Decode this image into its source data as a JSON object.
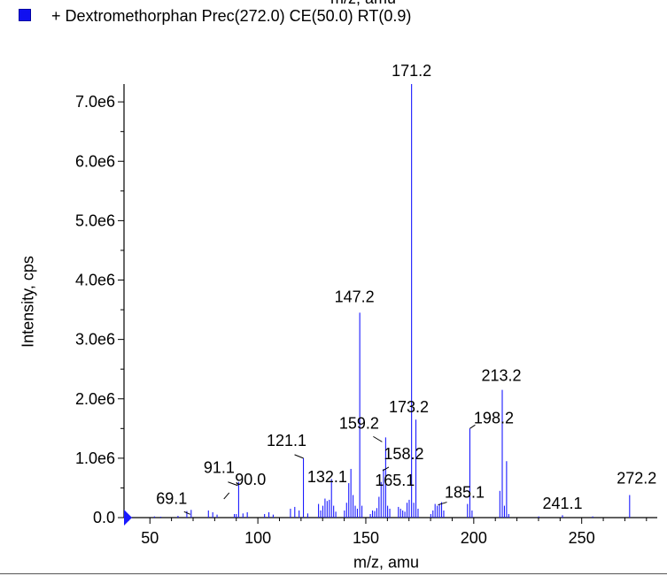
{
  "top_clipped_text": "m/z, amu",
  "chart_data": {
    "type": "bar",
    "title": "+ Dextromethorphan Prec(272.0) CE(50.0) RT(0.9)",
    "legend": {
      "placement": "top-left",
      "swatch_color": "#1010f0",
      "label": "+ Dextromethorphan Prec(272.0) CE(50.0) RT(0.9)"
    },
    "xlabel": "m/z, amu",
    "ylabel": "Intensity, cps",
    "xlim": [
      38,
      285
    ],
    "ylim": [
      0,
      7300000.0
    ],
    "x_ticks": [
      50,
      100,
      150,
      200,
      250
    ],
    "x_tick_labels": [
      "50",
      "100",
      "150",
      "200",
      "250"
    ],
    "y_ticks": [
      0,
      1000000,
      2000000,
      3000000,
      4000000,
      5000000,
      6000000,
      7000000
    ],
    "y_tick_labels": [
      "0.0",
      "1.0e6",
      "2.0e6",
      "3.0e6",
      "4.0e6",
      "5.0e6",
      "6.0e6",
      "7.0e6"
    ],
    "grid": false,
    "color": "#1a1aff",
    "peaks": [
      {
        "x": 52.1,
        "y": 20000
      },
      {
        "x": 55.0,
        "y": 15000
      },
      {
        "x": 63.0,
        "y": 30000
      },
      {
        "x": 67.1,
        "y": 110000
      },
      {
        "x": 69.1,
        "y": 130000
      },
      {
        "x": 77.1,
        "y": 120000
      },
      {
        "x": 79.1,
        "y": 90000
      },
      {
        "x": 81.1,
        "y": 50000
      },
      {
        "x": 89.1,
        "y": 60000
      },
      {
        "x": 90.0,
        "y": 60000
      },
      {
        "x": 91.1,
        "y": 600000
      },
      {
        "x": 93.1,
        "y": 70000
      },
      {
        "x": 95.1,
        "y": 90000
      },
      {
        "x": 103.1,
        "y": 60000
      },
      {
        "x": 105.1,
        "y": 90000
      },
      {
        "x": 107.1,
        "y": 50000
      },
      {
        "x": 115.1,
        "y": 150000
      },
      {
        "x": 117.1,
        "y": 180000
      },
      {
        "x": 119.1,
        "y": 120000
      },
      {
        "x": 121.1,
        "y": 1000000
      },
      {
        "x": 123.1,
        "y": 70000
      },
      {
        "x": 128.1,
        "y": 230000
      },
      {
        "x": 129.1,
        "y": 120000
      },
      {
        "x": 130.1,
        "y": 200000
      },
      {
        "x": 131.1,
        "y": 320000
      },
      {
        "x": 132.1,
        "y": 280000
      },
      {
        "x": 133.1,
        "y": 300000
      },
      {
        "x": 134.1,
        "y": 650000
      },
      {
        "x": 135.1,
        "y": 200000
      },
      {
        "x": 136.1,
        "y": 100000
      },
      {
        "x": 140.1,
        "y": 120000
      },
      {
        "x": 141.1,
        "y": 250000
      },
      {
        "x": 142.1,
        "y": 580000
      },
      {
        "x": 143.1,
        "y": 820000
      },
      {
        "x": 144.1,
        "y": 380000
      },
      {
        "x": 145.1,
        "y": 200000
      },
      {
        "x": 146.1,
        "y": 150000
      },
      {
        "x": 147.2,
        "y": 3450000
      },
      {
        "x": 148.2,
        "y": 200000
      },
      {
        "x": 152.1,
        "y": 60000
      },
      {
        "x": 153.1,
        "y": 120000
      },
      {
        "x": 154.1,
        "y": 110000
      },
      {
        "x": 155.1,
        "y": 160000
      },
      {
        "x": 156.1,
        "y": 350000
      },
      {
        "x": 157.1,
        "y": 600000
      },
      {
        "x": 158.2,
        "y": 820000
      },
      {
        "x": 159.2,
        "y": 1350000
      },
      {
        "x": 160.1,
        "y": 200000
      },
      {
        "x": 161.1,
        "y": 150000
      },
      {
        "x": 165.1,
        "y": 180000
      },
      {
        "x": 166.1,
        "y": 150000
      },
      {
        "x": 167.1,
        "y": 120000
      },
      {
        "x": 168.1,
        "y": 100000
      },
      {
        "x": 169.1,
        "y": 250000
      },
      {
        "x": 170.1,
        "y": 300000
      },
      {
        "x": 171.2,
        "y": 7300000
      },
      {
        "x": 172.2,
        "y": 250000
      },
      {
        "x": 173.2,
        "y": 1650000
      },
      {
        "x": 174.2,
        "y": 150000
      },
      {
        "x": 180.1,
        "y": 60000
      },
      {
        "x": 181.1,
        "y": 120000
      },
      {
        "x": 182.1,
        "y": 230000
      },
      {
        "x": 183.1,
        "y": 200000
      },
      {
        "x": 184.1,
        "y": 230000
      },
      {
        "x": 185.1,
        "y": 260000
      },
      {
        "x": 186.1,
        "y": 120000
      },
      {
        "x": 197.1,
        "y": 230000
      },
      {
        "x": 198.2,
        "y": 1500000
      },
      {
        "x": 199.2,
        "y": 120000
      },
      {
        "x": 212.1,
        "y": 450000
      },
      {
        "x": 213.2,
        "y": 2150000
      },
      {
        "x": 214.2,
        "y": 200000
      },
      {
        "x": 215.2,
        "y": 950000
      },
      {
        "x": 216.2,
        "y": 60000
      },
      {
        "x": 230.1,
        "y": 20000
      },
      {
        "x": 241.1,
        "y": 40000
      },
      {
        "x": 255.1,
        "y": 20000
      },
      {
        "x": 272.2,
        "y": 380000
      }
    ],
    "annotations": [
      {
        "label": "171.2",
        "x": 171.2
      },
      {
        "label": "147.2",
        "x": 147.2
      },
      {
        "label": "213.2",
        "x": 213.2
      },
      {
        "label": "173.2",
        "x": 173.2
      },
      {
        "label": "198.2",
        "x": 198.2
      },
      {
        "label": "159.2",
        "x": 159.2
      },
      {
        "label": "158.2",
        "x": 158.2
      },
      {
        "label": "121.1",
        "x": 121.1
      },
      {
        "label": "91.1",
        "x": 91.1
      },
      {
        "label": "132.1",
        "x": 132.1
      },
      {
        "label": "69.1",
        "x": 69.1
      },
      {
        "label": "90.0",
        "x": 90.0
      },
      {
        "label": "165.1",
        "x": 165.1
      },
      {
        "label": "185.1",
        "x": 185.1
      },
      {
        "label": "272.2",
        "x": 272.2
      },
      {
        "label": "241.1",
        "x": 241.1
      }
    ]
  }
}
